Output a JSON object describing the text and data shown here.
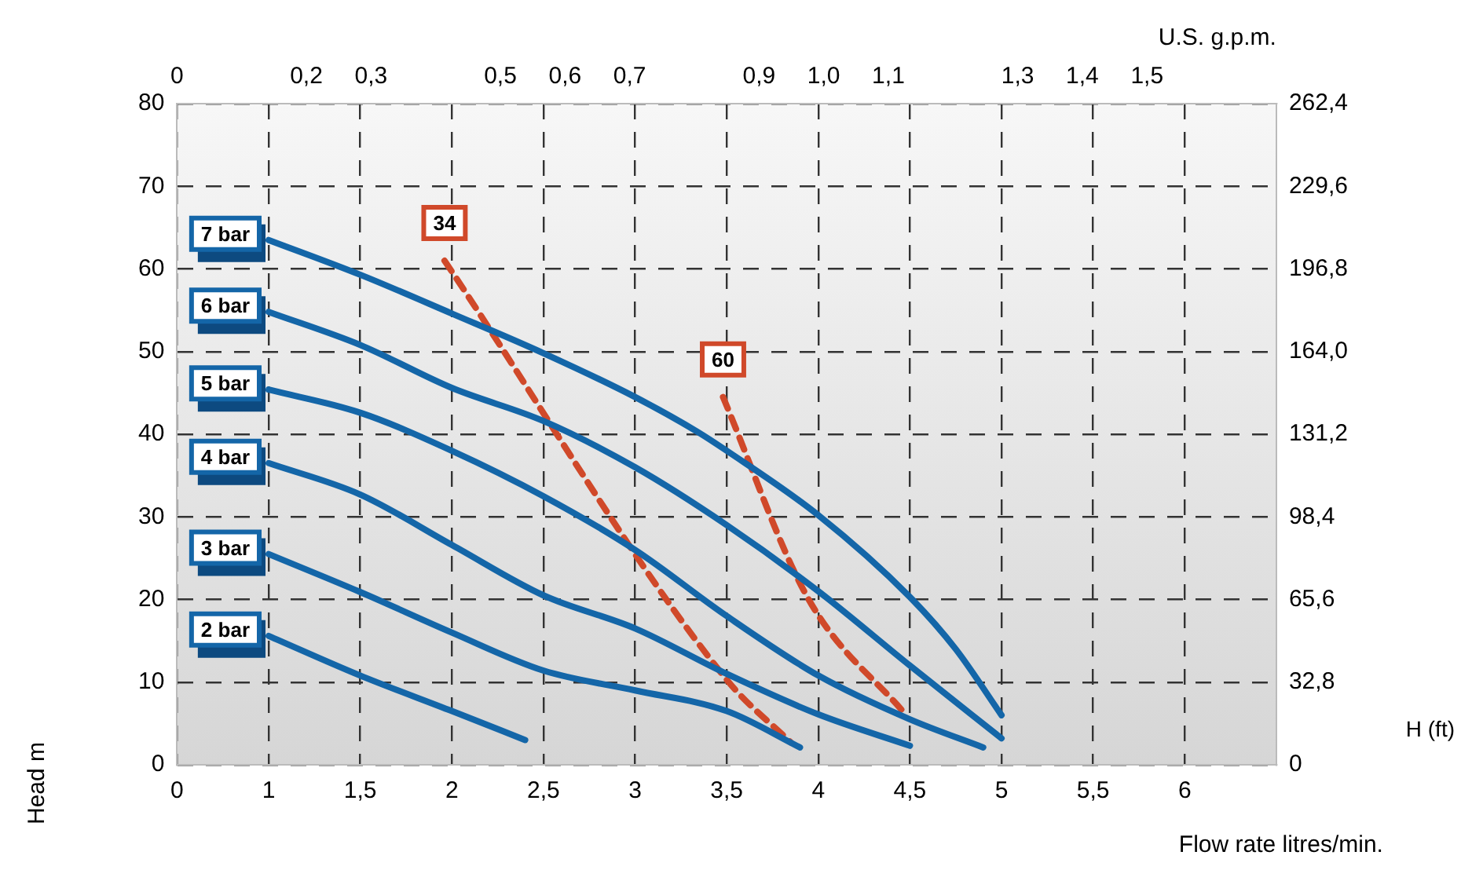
{
  "chart_data": {
    "type": "line",
    "xlabel": "Flow rate litres/min.",
    "x2label": "U.S. g.p.m.",
    "ylabel": "Head m",
    "y2label": "H (ft)",
    "xlim": [
      0.5,
      6.5
    ],
    "xticks": [
      {
        "value": 0.5,
        "label": "0"
      },
      1,
      {
        "value": 1.5,
        "label": "1,5"
      },
      2,
      {
        "value": 2.5,
        "label": "2,5"
      },
      3,
      {
        "value": 3.5,
        "label": "3,5"
      },
      4,
      {
        "value": 4.5,
        "label": "4,5"
      },
      5,
      {
        "value": 5.5,
        "label": "5,5"
      },
      6
    ],
    "x2lim": [
      0,
      1.7
    ],
    "x2ticks": [
      0,
      {
        "value": 0.2,
        "label": "0,2"
      },
      {
        "value": 0.3,
        "label": "0,3"
      },
      {
        "value": 0.5,
        "label": "0,5"
      },
      {
        "value": 0.6,
        "label": "0,6"
      },
      {
        "value": 0.7,
        "label": "0,7"
      },
      {
        "value": 0.9,
        "label": "0,9"
      },
      {
        "value": 1,
        "label": "1,0"
      },
      {
        "value": 1.1,
        "label": "1,1"
      },
      {
        "value": 1.3,
        "label": "1,3"
      },
      {
        "value": 1.4,
        "label": "1,4"
      },
      {
        "value": 1.5,
        "label": "1,5"
      }
    ],
    "ylim": [
      0,
      80
    ],
    "yticks": [
      0,
      10,
      20,
      30,
      40,
      50,
      60,
      70,
      80
    ],
    "y2lim": [
      0,
      262.4
    ],
    "y2ticks": [
      0,
      {
        "value": 32.8,
        "label": "32,8"
      },
      {
        "value": 65.6,
        "label": "65,6"
      },
      {
        "value": 98.4,
        "label": "98,4"
      },
      {
        "value": 131.2,
        "label": "131,2"
      },
      {
        "value": 164,
        "label": "164,0"
      },
      {
        "value": 196.8,
        "label": "196,8"
      },
      {
        "value": 229.6,
        "label": "229,6"
      },
      {
        "value": 262.4,
        "label": "262,4"
      }
    ],
    "grid": true,
    "legend": false,
    "marker": "none",
    "series": [
      {
        "name": "7 bar",
        "color": "#1466a8",
        "line_style": "solid",
        "x": [
          1,
          1.5,
          2,
          2.5,
          3,
          3.34,
          3.5,
          4,
          4.5,
          4.75,
          5
        ],
        "values": [
          63.5,
          59.3,
          54.6,
          49.8,
          44.5,
          40.3,
          38,
          30.2,
          20.3,
          14,
          6
        ]
      },
      {
        "name": "6 bar",
        "color": "#1466a8",
        "line_style": "solid",
        "x": [
          1,
          1.5,
          2,
          2.5,
          3,
          3.5,
          4,
          4.5,
          5
        ],
        "values": [
          54.8,
          50.8,
          45.6,
          41.6,
          36,
          29,
          21,
          12,
          3.2
        ]
      },
      {
        "name": "5 bar",
        "color": "#1466a8",
        "line_style": "solid",
        "x": [
          1,
          1.5,
          2,
          2.5,
          3,
          3.5,
          4,
          4.5,
          4.9
        ],
        "values": [
          45.4,
          42.6,
          38,
          32.5,
          26,
          18,
          10.8,
          5.5,
          2.1
        ]
      },
      {
        "name": "4 bar",
        "color": "#1466a8",
        "line_style": "solid",
        "x": [
          1,
          1.5,
          2,
          2.5,
          3,
          3.5,
          4,
          4.5
        ],
        "values": [
          36.5,
          32.7,
          26.6,
          20.5,
          16.5,
          11,
          6.1,
          2.3
        ]
      },
      {
        "name": "3 bar",
        "color": "#1466a8",
        "line_style": "solid",
        "x": [
          1,
          1.5,
          2,
          2.5,
          3,
          3.5,
          3.9
        ],
        "values": [
          25.5,
          20.9,
          16,
          11.4,
          9,
          6.5,
          2.1
        ]
      },
      {
        "name": "2 bar",
        "color": "#1466a8",
        "line_style": "solid",
        "x": [
          1,
          1.5,
          2,
          2.4
        ],
        "values": [
          15.6,
          10.8,
          6.5,
          3
        ]
      },
      {
        "name": "34",
        "color": "#d0492a",
        "line_style": "dashed",
        "x": [
          1.96,
          3.5,
          3.85
        ],
        "values": [
          61,
          10.3,
          2.7
        ]
      },
      {
        "name": "60",
        "color": "#d0492a",
        "line_style": "dashed",
        "x": [
          3.48,
          3.94,
          4.48
        ],
        "values": [
          44.5,
          20.3,
          6
        ]
      }
    ]
  }
}
